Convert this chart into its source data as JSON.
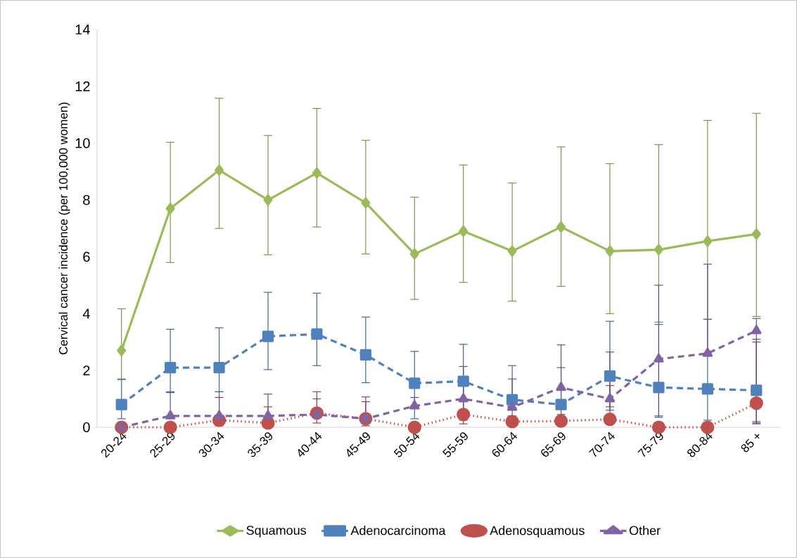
{
  "chart_data": {
    "type": "line",
    "ylabel": "Cervical cancer incidence (per 100,000 women)",
    "categories": [
      "20-24",
      "25-29",
      "30-34",
      "35-39",
      "40-44",
      "45-49",
      "50-54",
      "55-59",
      "60-64",
      "65-69",
      "70-74",
      "75-79",
      "80-84",
      "85 +"
    ],
    "ylim": [
      0,
      14
    ],
    "yticks": [
      0,
      2,
      4,
      6,
      8,
      10,
      12,
      14
    ],
    "grid": false,
    "legend": "bottom",
    "series": [
      {
        "name": "Squamous",
        "color": "#9bbb59",
        "marker": "diamond",
        "line_style": "solid",
        "values": [
          2.7,
          7.7,
          9.05,
          8.0,
          8.95,
          7.9,
          6.1,
          6.9,
          6.2,
          7.05,
          6.2,
          6.25,
          6.55,
          6.8
        ],
        "errors": [
          [
            1.7,
            4.17
          ],
          [
            5.8,
            10.03
          ],
          [
            7.0,
            11.58
          ],
          [
            6.07,
            10.27
          ],
          [
            7.05,
            11.22
          ],
          [
            6.1,
            10.1
          ],
          [
            4.5,
            8.1
          ],
          [
            5.1,
            9.23
          ],
          [
            4.44,
            8.6
          ],
          [
            4.96,
            9.87
          ],
          [
            4.0,
            9.28
          ],
          [
            3.7,
            9.95
          ],
          [
            3.8,
            10.8
          ],
          [
            3.9,
            11.05
          ]
        ]
      },
      {
        "name": "Adenocarcinoma",
        "color": "#4f81bd",
        "marker": "square",
        "line_style": "dashed",
        "values": [
          0.8,
          2.1,
          2.1,
          3.2,
          3.28,
          2.55,
          1.55,
          1.62,
          0.97,
          0.8,
          1.8,
          1.4,
          1.35,
          1.3
        ],
        "errors": [
          [
            0.3,
            1.68
          ],
          [
            1.25,
            3.45
          ],
          [
            1.25,
            3.5
          ],
          [
            2.03,
            4.75
          ],
          [
            2.17,
            4.72
          ],
          [
            1.57,
            3.88
          ],
          [
            0.3,
            2.67
          ],
          [
            0.6,
            2.92
          ],
          [
            0.4,
            2.17
          ],
          [
            0.45,
            2.1
          ],
          [
            0.72,
            3.73
          ],
          [
            0.35,
            3.62
          ],
          [
            0.25,
            3.8
          ],
          [
            0.2,
            3.1
          ]
        ]
      },
      {
        "name": "Adenosquamous",
        "color": "#c0504d",
        "marker": "circle",
        "line_style": "dotted",
        "values": [
          0.0,
          0.0,
          0.25,
          0.15,
          0.5,
          0.3,
          0.0,
          0.45,
          0.2,
          0.22,
          0.28,
          0.0,
          0.0,
          0.85
        ],
        "errors": [
          null,
          null,
          [
            0.05,
            1.05
          ],
          [
            0.15,
            0.72
          ],
          [
            0.15,
            1.25
          ],
          [
            0.3,
            0.9
          ],
          null,
          [
            0.12,
            1.75
          ],
          null,
          null,
          [
            0.28,
            1.47
          ],
          null,
          null,
          [
            0.12,
            3.0
          ]
        ]
      },
      {
        "name": "Other",
        "color": "#8064a2",
        "marker": "triangle",
        "line_style": "dashed",
        "values": [
          0.0,
          0.4,
          0.4,
          0.4,
          0.45,
          0.3,
          0.75,
          1.0,
          0.7,
          1.4,
          1.0,
          2.4,
          2.6,
          3.4
        ],
        "errors": [
          null,
          [
            0.4,
            1.22
          ],
          [
            0.08,
            1.25
          ],
          [
            0.4,
            1.17
          ],
          [
            0.45,
            1.0
          ],
          [
            0.05,
            1.07
          ],
          [
            0.75,
            1.05
          ],
          [
            0.25,
            2.14
          ],
          [
            0.7,
            1.7
          ],
          [
            0.35,
            2.9
          ],
          [
            0.6,
            2.65
          ],
          [
            0.4,
            5.0
          ],
          [
            2.6,
            5.74
          ],
          [
            0.15,
            3.83
          ]
        ]
      }
    ]
  }
}
